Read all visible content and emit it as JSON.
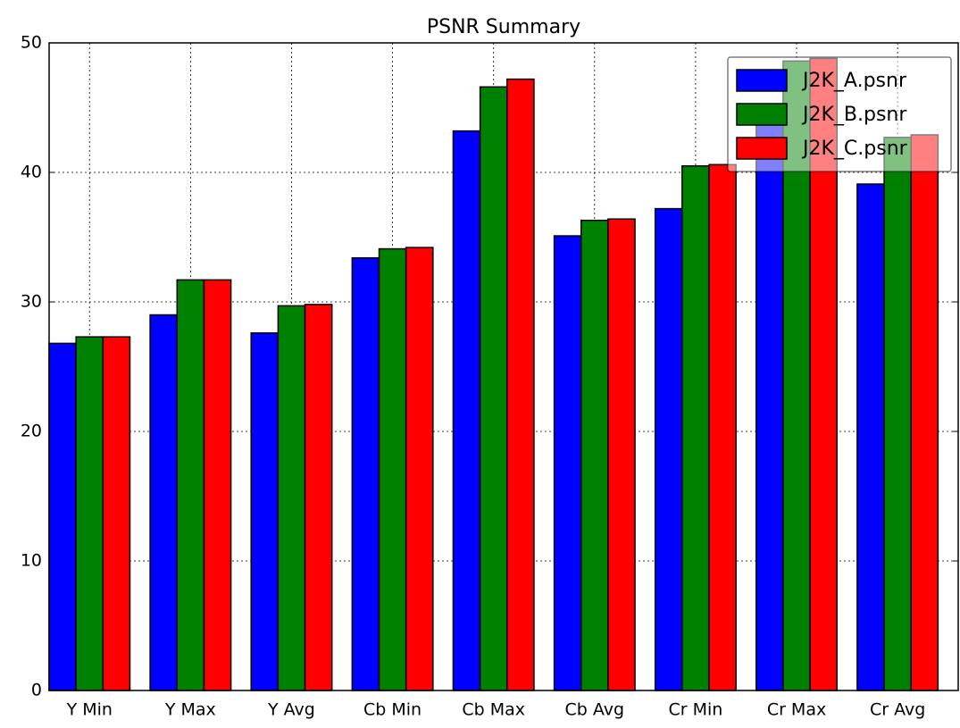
{
  "chart_data": {
    "type": "bar",
    "title": "PSNR Summary",
    "categories": [
      "Y Min",
      "Y Max",
      "Y Avg",
      "Cb Min",
      "Cb Max",
      "Cb Avg",
      "Cr Min",
      "Cr Max",
      "Cr Avg"
    ],
    "series": [
      {
        "name": "J2K_A.psnr",
        "color": "#0000ff",
        "values": [
          26.8,
          29.0,
          27.6,
          33.4,
          43.2,
          35.1,
          37.2,
          44.3,
          39.1
        ]
      },
      {
        "name": "J2K_B.psnr",
        "color": "#008000",
        "values": [
          27.3,
          31.7,
          29.7,
          34.1,
          46.6,
          36.3,
          40.5,
          48.6,
          42.7
        ]
      },
      {
        "name": "J2K_C.psnr",
        "color": "#ff0000",
        "values": [
          27.3,
          31.7,
          29.8,
          34.2,
          47.2,
          36.4,
          40.6,
          48.8,
          42.9
        ]
      }
    ],
    "ylim": [
      0,
      50
    ],
    "yticks": [
      0,
      10,
      20,
      30,
      40,
      50
    ],
    "grid": true,
    "legend": "upper right"
  }
}
